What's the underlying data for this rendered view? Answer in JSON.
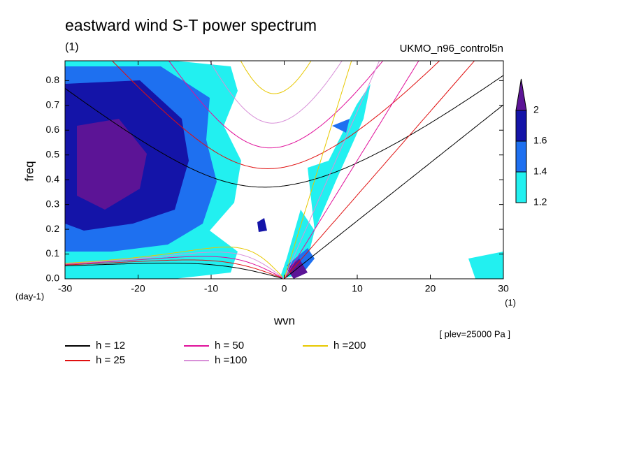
{
  "chart_data": {
    "type": "contour",
    "title": "eastward wind S-T power spectrum",
    "subtitle": "(1)",
    "source_label": "UKMO_n96_control5n",
    "y_label": "freq",
    "y_unit": "(day-1)",
    "x_label": "wvn",
    "x_unit": "(1)",
    "annotation": "[ plev=25000 Pa ]",
    "xlim": [
      -30,
      30
    ],
    "xticks": [
      -30,
      -20,
      -10,
      0,
      10,
      20,
      30
    ],
    "ylim": [
      0,
      0.88
    ],
    "yticks": [
      {
        "value": 0,
        "label": "0.0"
      },
      0.1,
      0.2,
      0.3,
      0.4,
      0.5,
      0.6,
      0.7,
      0.8
    ],
    "contour_levels": [
      1.2,
      1.4,
      1.6,
      2
    ],
    "contour_colors": [
      "#22f0f0",
      "#1e70f0",
      "#1414a8",
      "#5c1496"
    ],
    "series": [
      {
        "name": "h = 12",
        "value": 12,
        "color": "#000000"
      },
      {
        "name": "h = 25",
        "value": 25,
        "color": "#e01010"
      },
      {
        "name": "h = 50",
        "value": 50,
        "color": "#e0109a"
      },
      {
        "name": "h =100",
        "value": 100,
        "color": "#d890d8"
      },
      {
        "name": "h =200",
        "value": 200,
        "color": "#e8c800"
      }
    ]
  }
}
